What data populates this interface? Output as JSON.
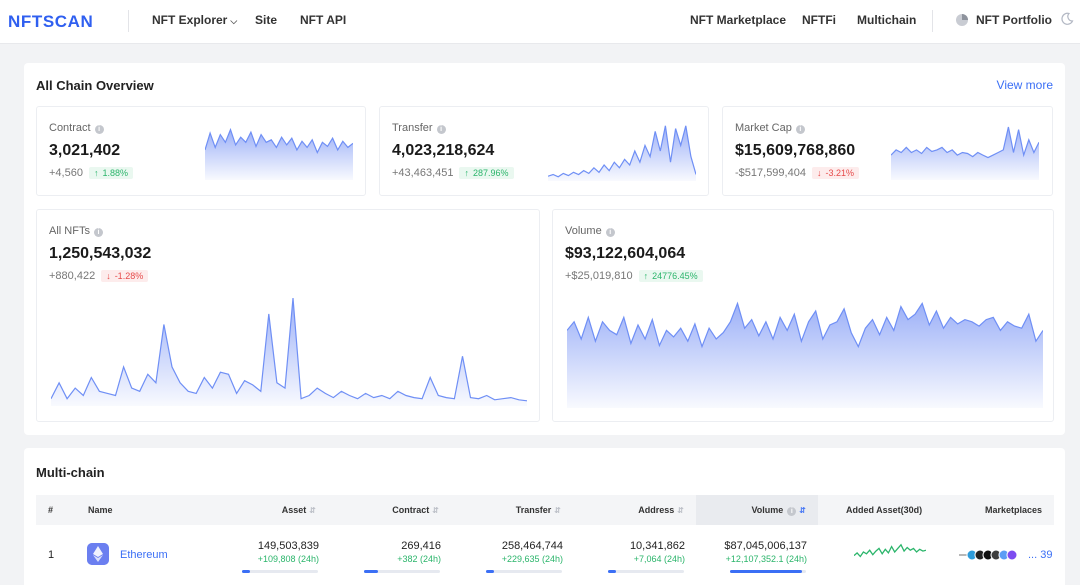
{
  "nav": {
    "logo_text": "NFTSCAN",
    "left_items": [
      "NFT Explorer",
      "Site",
      "NFT API"
    ],
    "right_items": [
      "NFT Marketplace",
      "NFTFi",
      "Multichain"
    ],
    "portfolio": "NFT Portfolio",
    "icons": [
      "chevron-down-icon",
      "pie-chart-icon",
      "moon-icon"
    ]
  },
  "overview": {
    "title": "All Chain Overview",
    "view_more": "View more",
    "colors": {
      "accent": "#3b6ff5",
      "up": "#2bb56b",
      "down": "#e64b4b",
      "spark_line": "#6f8ff5"
    },
    "stats": [
      {
        "label": "Contract",
        "value": "3,021,402",
        "delta": "+4,560",
        "pct": "1.88%",
        "trend": "up",
        "series": [
          0.55,
          0.88,
          0.6,
          0.85,
          0.7,
          0.95,
          0.65,
          0.8,
          0.7,
          0.9,
          0.62,
          0.85,
          0.7,
          0.75,
          0.6,
          0.8,
          0.65,
          0.78,
          0.55,
          0.72,
          0.6,
          0.75,
          0.5,
          0.7,
          0.62,
          0.78,
          0.55,
          0.72,
          0.6,
          0.68
        ]
      },
      {
        "label": "Transfer",
        "value": "4,023,218,624",
        "delta": "+43,463,451",
        "pct": "287.96%",
        "trend": "up",
        "series": [
          0.05,
          0.08,
          0.04,
          0.1,
          0.06,
          0.12,
          0.08,
          0.15,
          0.1,
          0.2,
          0.12,
          0.25,
          0.15,
          0.3,
          0.2,
          0.35,
          0.25,
          0.5,
          0.3,
          0.6,
          0.4,
          0.85,
          0.5,
          0.95,
          0.3,
          0.9,
          0.6,
          0.95,
          0.4,
          0.08
        ]
      },
      {
        "label": "Market Cap",
        "value": "$15,609,768,860",
        "delta": "-$517,599,404",
        "pct": "-3.21%",
        "trend": "down",
        "series": [
          0.45,
          0.55,
          0.5,
          0.6,
          0.5,
          0.55,
          0.48,
          0.6,
          0.52,
          0.55,
          0.6,
          0.5,
          0.55,
          0.45,
          0.5,
          0.48,
          0.42,
          0.5,
          0.45,
          0.4,
          0.45,
          0.5,
          0.55,
          1.0,
          0.5,
          0.95,
          0.45,
          0.75,
          0.5,
          0.7
        ]
      },
      {
        "label": "All NFTs",
        "value": "1,250,543,032",
        "delta": "+880,422",
        "pct": "-1.28%",
        "trend": "down",
        "series": [
          0.05,
          0.2,
          0.05,
          0.15,
          0.08,
          0.25,
          0.12,
          0.1,
          0.08,
          0.35,
          0.15,
          0.12,
          0.28,
          0.2,
          0.75,
          0.35,
          0.2,
          0.12,
          0.1,
          0.25,
          0.15,
          0.3,
          0.28,
          0.1,
          0.22,
          0.18,
          0.12,
          0.85,
          0.2,
          0.15,
          1.0,
          0.05,
          0.08,
          0.15,
          0.1,
          0.06,
          0.12,
          0.08,
          0.05,
          0.1,
          0.06,
          0.08,
          0.05,
          0.12,
          0.08,
          0.06,
          0.05,
          0.25,
          0.08,
          0.06,
          0.05,
          0.45,
          0.06,
          0.05,
          0.08,
          0.04,
          0.05,
          0.06,
          0.04,
          0.03
        ]
      },
      {
        "label": "Volume",
        "value": "$93,122,604,064",
        "delta": "+$25,019,810",
        "pct": "24776.45%",
        "trend": "up",
        "series": [
          0.7,
          0.78,
          0.62,
          0.82,
          0.6,
          0.78,
          0.7,
          0.66,
          0.82,
          0.58,
          0.75,
          0.62,
          0.8,
          0.56,
          0.7,
          0.64,
          0.72,
          0.6,
          0.76,
          0.55,
          0.72,
          0.62,
          0.68,
          0.78,
          0.95,
          0.72,
          0.8,
          0.65,
          0.78,
          0.62,
          0.82,
          0.7,
          0.85,
          0.6,
          0.78,
          0.88,
          0.62,
          0.75,
          0.78,
          0.9,
          0.68,
          0.55,
          0.72,
          0.8,
          0.66,
          0.82,
          0.7,
          0.92,
          0.8,
          0.85,
          0.95,
          0.75,
          0.88,
          0.72,
          0.82,
          0.76,
          0.8,
          0.78,
          0.74,
          0.8,
          0.82,
          0.7,
          0.78,
          0.74,
          0.72,
          0.85,
          0.6,
          0.7
        ]
      }
    ]
  },
  "multichain": {
    "title": "Multi-chain",
    "columns": [
      "#",
      "Name",
      "Asset",
      "Contract",
      "Transfer",
      "Address",
      "Volume",
      "Added Asset(30d)",
      "Marketplaces"
    ],
    "rows": [
      {
        "rank": "1",
        "name": "Ethereum",
        "icon": "ethereum-icon",
        "asset": "149,503,839",
        "asset_d": "+109,808 (24h)",
        "asset_share": 0.1,
        "contract": "269,416",
        "contract_d": "+382 (24h)",
        "contract_share": 0.18,
        "transfer": "258,464,744",
        "transfer_d": "+229,635 (24h)",
        "transfer_share": 0.1,
        "address": "10,341,862",
        "address_d": "+7,064 (24h)",
        "address_share": 0.1,
        "volume": "$87,045,006,137",
        "volume_d": "+12,107,352.1 (24h)",
        "volume_share": 0.95,
        "marketplaces": "... 39",
        "added_series": [
          0.3,
          0.45,
          0.25,
          0.5,
          0.4,
          0.6,
          0.35,
          0.55,
          0.7,
          0.4,
          0.65,
          0.45,
          0.8,
          0.5,
          0.7,
          0.9,
          0.55,
          0.75,
          0.6,
          0.7,
          0.5,
          0.65,
          0.55,
          0.6
        ]
      }
    ]
  }
}
